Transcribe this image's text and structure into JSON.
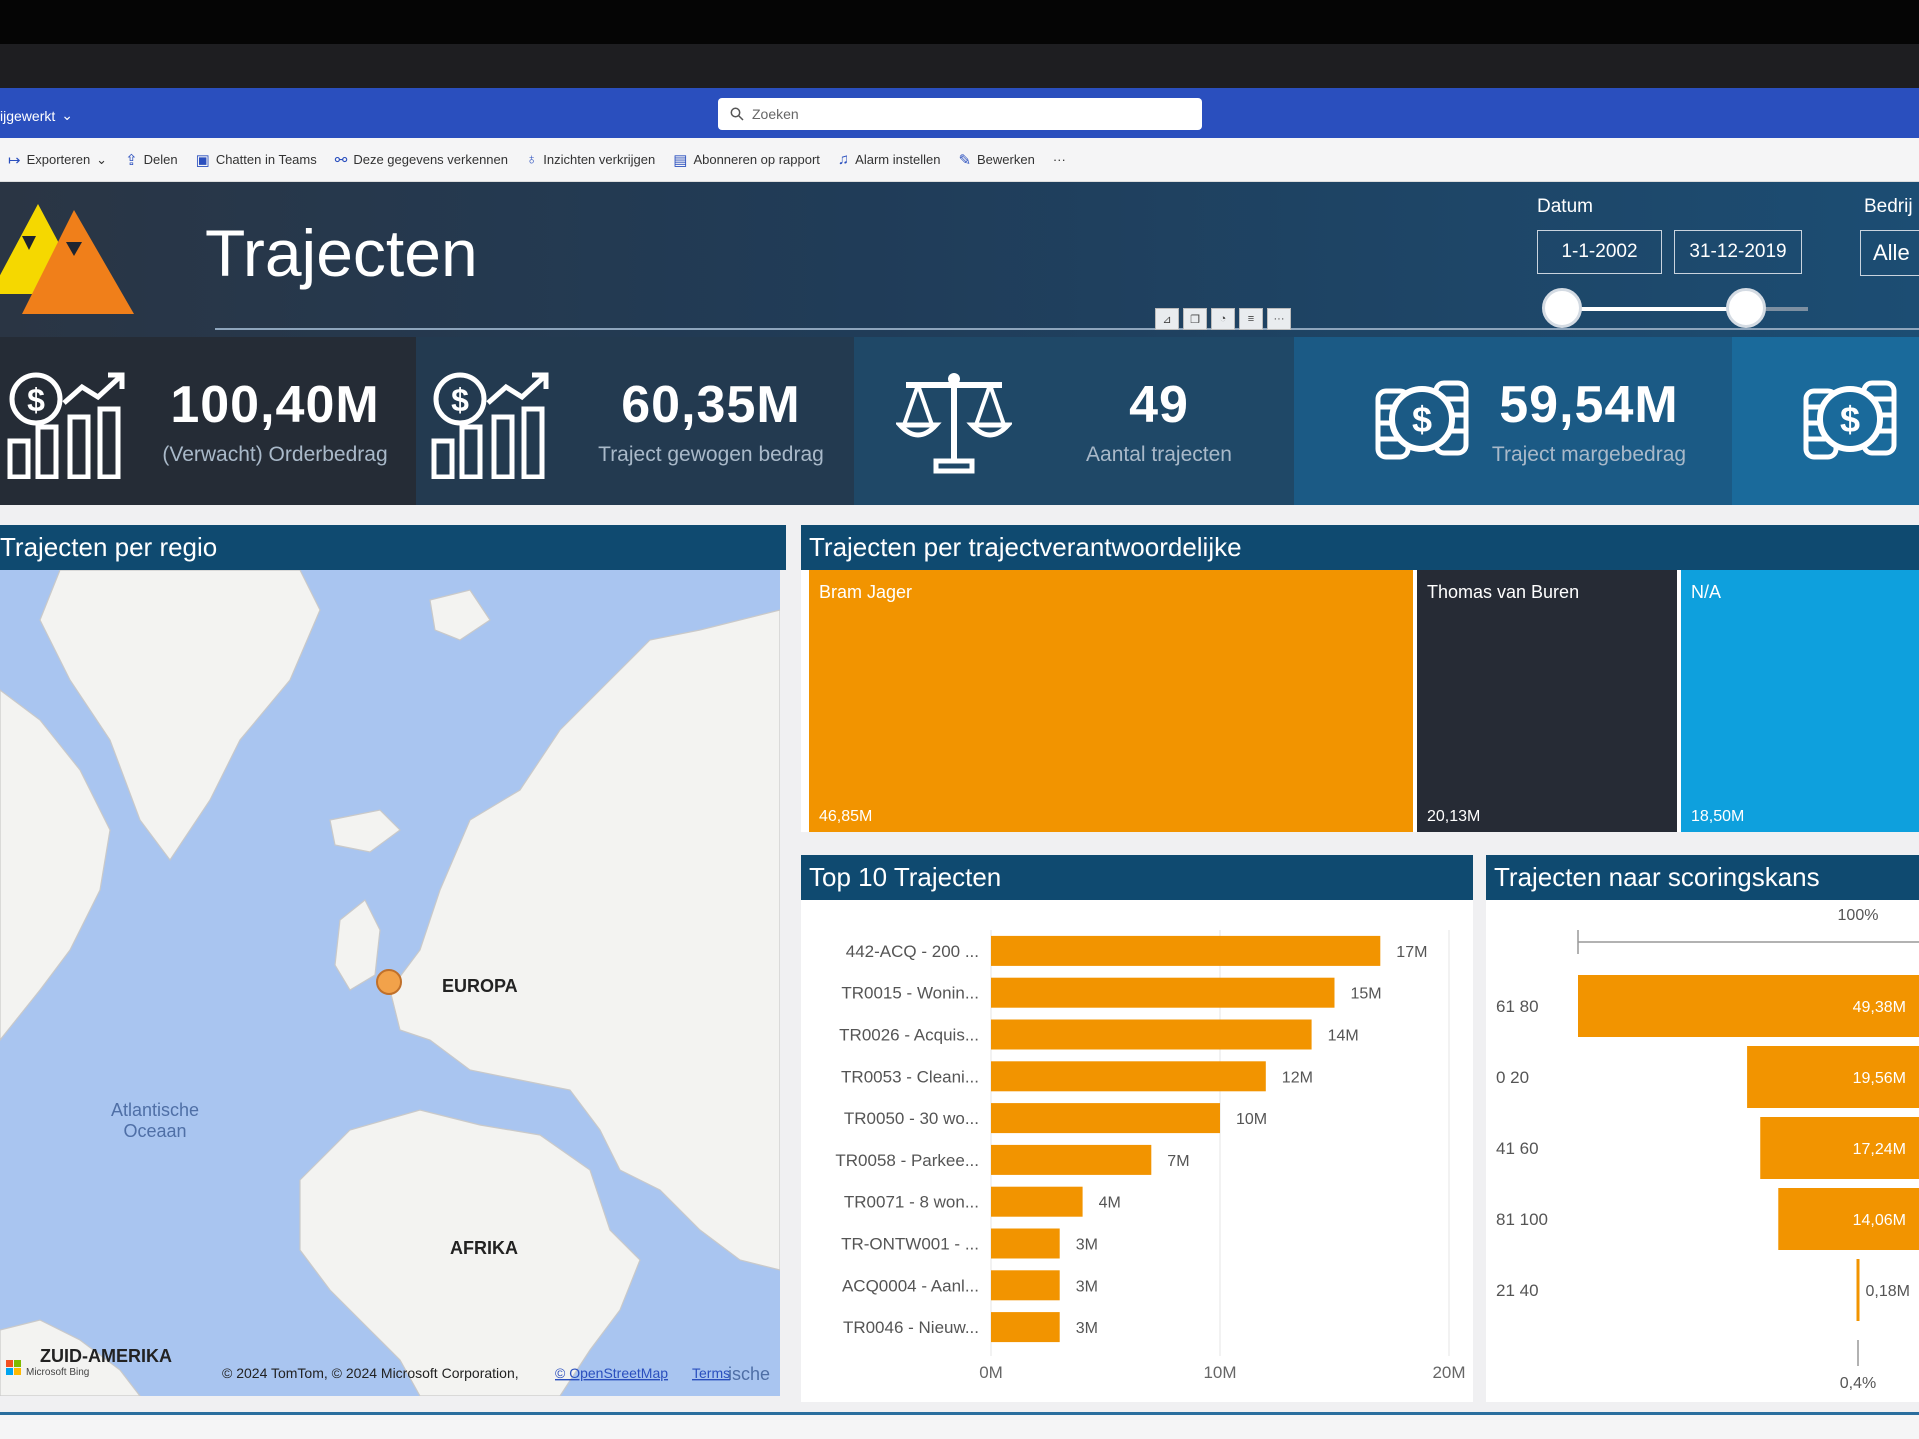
{
  "app": {
    "workspace": "ijgewerkt",
    "search_placeholder": "Zoeken"
  },
  "toolbar": {
    "items": [
      "Exporteren",
      "Delen",
      "Chatten in Teams",
      "Deze gegevens verkennen",
      "Inzichten verkrijgen",
      "Abonneren op rapport",
      "Alarm instellen",
      "Bewerken"
    ],
    "more": "···"
  },
  "header": {
    "title": "Trajecten",
    "datum_label": "Datum",
    "date_from": "1-1-2002",
    "date_to": "31-12-2019",
    "bedrijf_label": "Bedrij",
    "bedrijf_value": "Alle"
  },
  "kpis": [
    {
      "value": "100,40M",
      "label": "(Verwacht) Orderbedrag",
      "icon": "chart-dollar-icon"
    },
    {
      "value": "60,35M",
      "label": "Traject gewogen bedrag",
      "icon": "chart-dollar-icon"
    },
    {
      "value": "49",
      "label": "Aantal trajecten",
      "icon": "scale-icon"
    },
    {
      "value": "59,54M",
      "label": "Traject margebedrag",
      "icon": "coins-dollar-icon"
    },
    {
      "value": "",
      "label": "",
      "icon": "coins-dollar-icon"
    }
  ],
  "map": {
    "title": "Trajecten per regio",
    "labels": {
      "europa": "EUROPA",
      "afrika": "AFRIKA",
      "zuid_amerika": "ZUID-AMERIKA",
      "ocean": "Atlantische Oceaan",
      "ocean_right": "ische"
    },
    "attribution": "© 2024 TomTom, © 2024 Microsoft Corporation,",
    "osm": "© OpenStreetMap",
    "terms": "Terms",
    "bing": "Microsoft Bing"
  },
  "treemap": {
    "title": "Trajecten per trajectverantwoordelijke",
    "items": [
      {
        "name": "Bram Jager",
        "value_label": "46,85M",
        "value": 46.85,
        "color": "#f29400"
      },
      {
        "name": "Thomas van Buren",
        "value_label": "20,13M",
        "value": 20.13,
        "color": "#262b35"
      },
      {
        "name": "N/A",
        "value_label": "18,50M",
        "value": 18.5,
        "color": "#0ea0dd"
      }
    ]
  },
  "chart_data": [
    {
      "type": "bar",
      "orientation": "horizontal",
      "title": "Top 10 Trajecten",
      "categories": [
        "442-ACQ - 200 ...",
        "TR0015 - Wonin...",
        "TR0026 - Acquis...",
        "TR0053 - Cleani...",
        "TR0050 - 30 wo...",
        "TR0058 - Parkee...",
        "TR0071 - 8 won...",
        "TR-ONTW001 - ...",
        "ACQ0004 - Aanl...",
        "TR0046 - Nieuw..."
      ],
      "values": [
        17,
        15,
        14,
        12,
        10,
        7,
        4,
        3,
        3,
        3
      ],
      "value_labels": [
        "17M",
        "15M",
        "14M",
        "12M",
        "10M",
        "7M",
        "4M",
        "3M",
        "3M",
        "3M"
      ],
      "xticks": [
        "0M",
        "10M",
        "20M"
      ],
      "xlim": [
        0,
        20
      ],
      "color": "#f29400"
    },
    {
      "type": "bar",
      "orientation": "horizontal",
      "title": "Trajecten naar scoringskans",
      "categories": [
        "61 80",
        "0 20",
        "41 60",
        "81 100",
        "21 40"
      ],
      "values": [
        49.38,
        19.56,
        17.24,
        14.06,
        0.18
      ],
      "value_labels": [
        "49,38M",
        "19,56M",
        "17,24M",
        "14,06M",
        "0,18M"
      ],
      "top_label": "100%",
      "bottom_label": "0,4%",
      "color": "#f29400"
    }
  ]
}
